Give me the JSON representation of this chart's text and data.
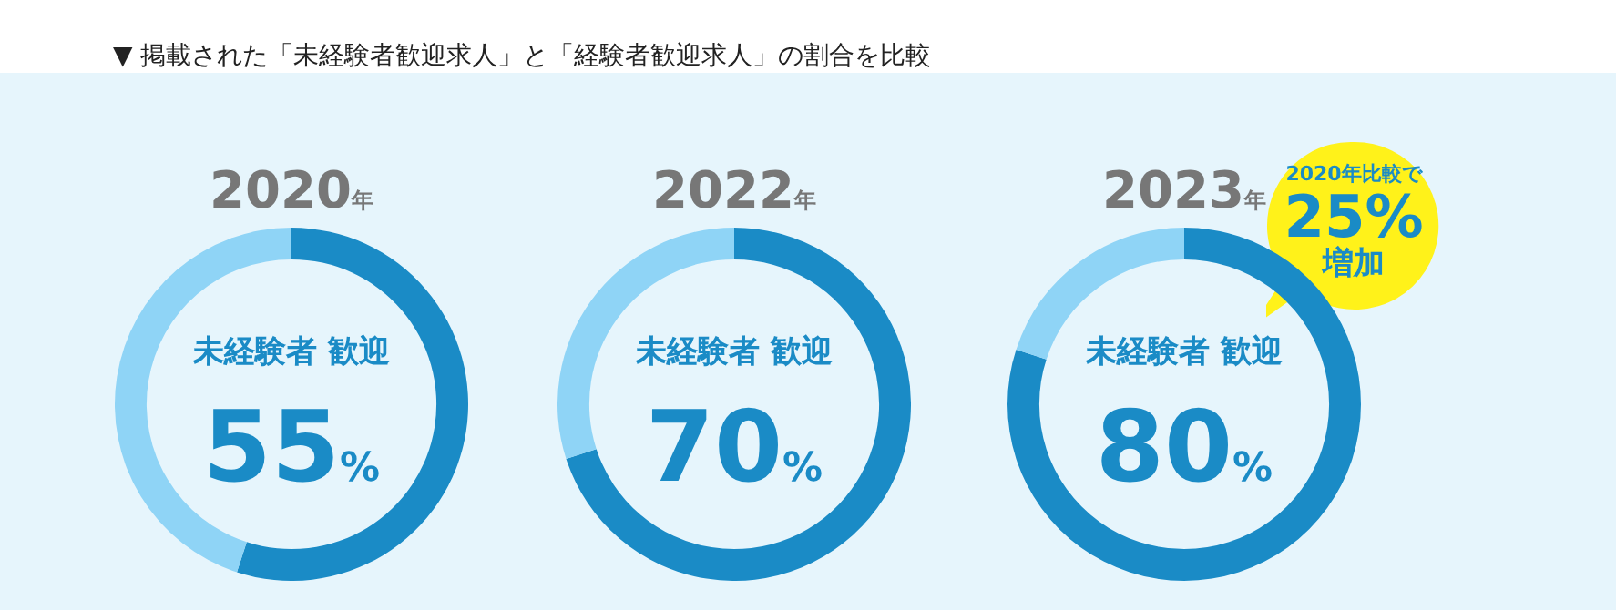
{
  "chart_data": [
    {
      "type": "other",
      "title": "▼ 掲載された「未経験者歓迎求人」と「経験者歓迎求人」の割合を比較"
    },
    {
      "type": "donut",
      "title": "2020年",
      "categories": [
        "未経験者 歓迎",
        null
      ],
      "values": [
        55,
        45
      ],
      "colors": [
        "#1a8bc6",
        "#8fd4f6"
      ],
      "value_labels": [
        "55%",
        null
      ],
      "legend": false
    },
    {
      "type": "donut",
      "title": "2022年",
      "categories": [
        "未経験者 歓迎",
        null
      ],
      "values": [
        70,
        30
      ],
      "colors": [
        "#1a8bc6",
        "#8fd4f6"
      ],
      "value_labels": [
        "70%",
        null
      ],
      "legend": false
    },
    {
      "type": "donut",
      "title": "2023年",
      "categories": [
        "未経験者 歓迎",
        null
      ],
      "values": [
        80,
        20
      ],
      "colors": [
        "#1a8bc6",
        "#8fd4f6"
      ],
      "value_labels": [
        "80%",
        null
      ],
      "legend": false,
      "annotations": [
        "2020年比較で\n25%\n増加"
      ]
    }
  ]
}
